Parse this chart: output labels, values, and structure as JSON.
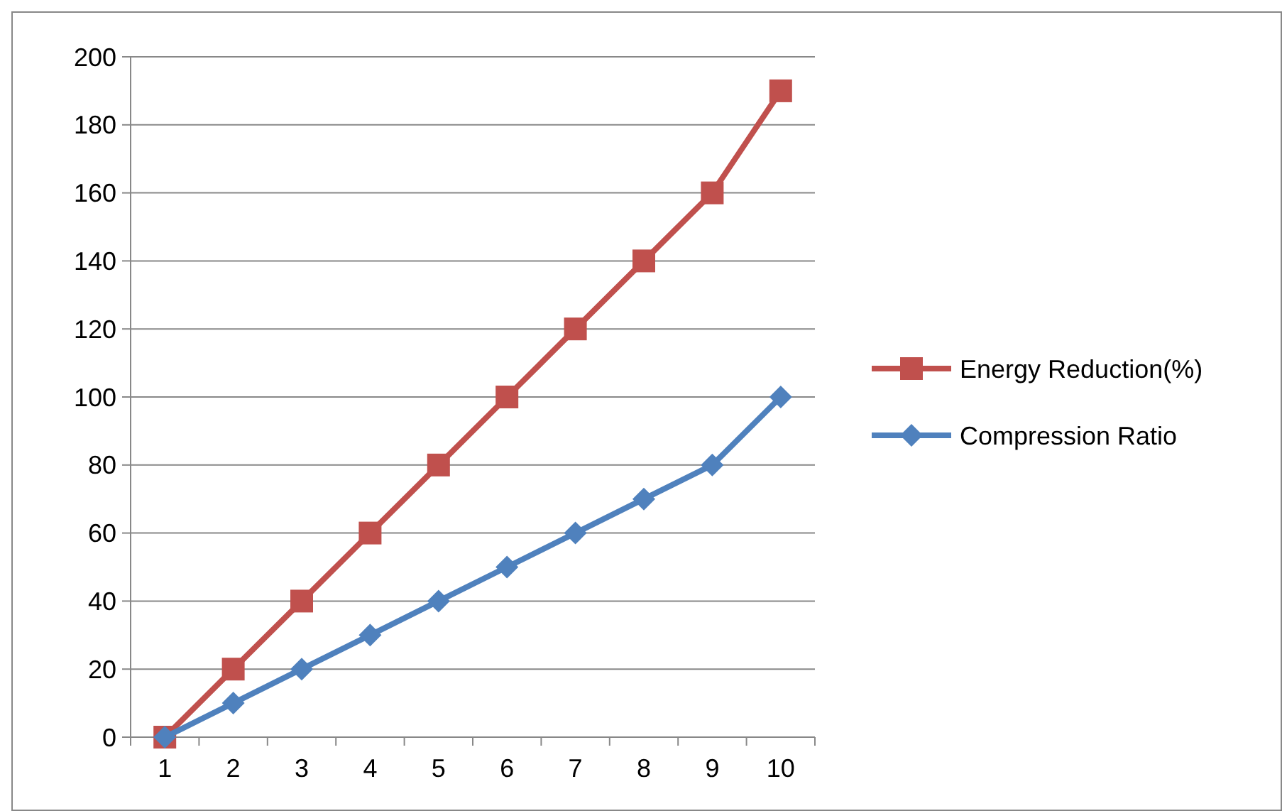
{
  "chart_data": {
    "type": "line",
    "categories": [
      "1",
      "2",
      "3",
      "4",
      "5",
      "6",
      "7",
      "8",
      "9",
      "10"
    ],
    "series": [
      {
        "name": "Energy Reduction(%)",
        "color": "#c0504d",
        "marker": "square",
        "values": [
          0,
          20,
          40,
          60,
          80,
          100,
          120,
          140,
          160,
          190
        ]
      },
      {
        "name": "Compression Ratio",
        "color": "#4f81bd",
        "marker": "diamond",
        "values": [
          0,
          10,
          20,
          30,
          40,
          50,
          60,
          70,
          80,
          100
        ]
      }
    ],
    "ylim": [
      0,
      200
    ],
    "yticks": [
      0,
      20,
      40,
      60,
      80,
      100,
      120,
      140,
      160,
      180,
      200
    ],
    "grid": "y",
    "legend": "right",
    "line_style": "solid"
  }
}
